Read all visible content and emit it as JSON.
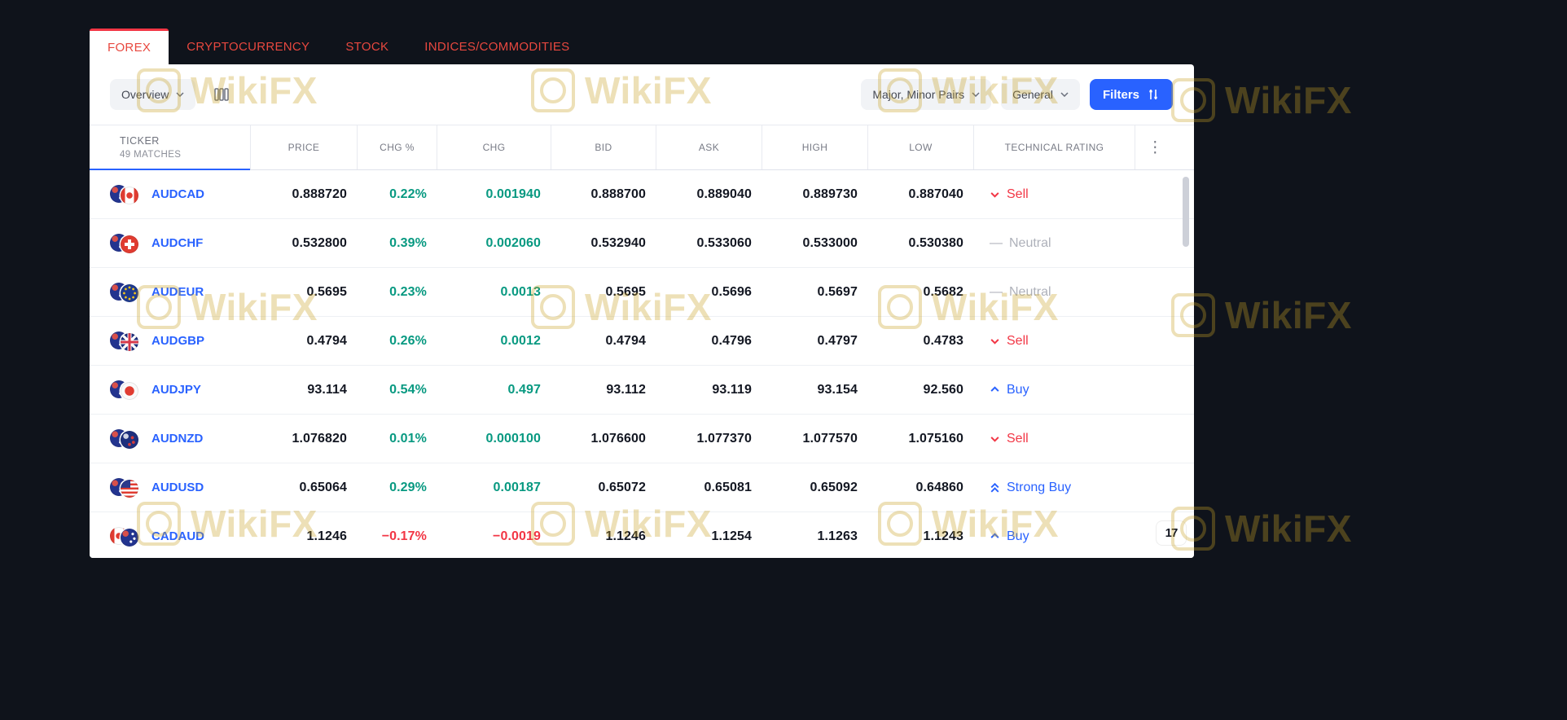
{
  "tabs": {
    "items": [
      {
        "label": "FOREX",
        "active": true
      },
      {
        "label": "CRYPTOCURRENCY",
        "active": false
      },
      {
        "label": "STOCK",
        "active": false
      },
      {
        "label": "INDICES/COMMODITIES",
        "active": false
      }
    ]
  },
  "toolbar": {
    "view_selector": "Overview",
    "pairs_selector": "Major, Minor Pairs",
    "category_selector": "General",
    "filters_button": "Filters"
  },
  "table": {
    "ticker_header": "TICKER",
    "matches_label": "49 MATCHES",
    "columns": [
      "PRICE",
      "CHG %",
      "CHG",
      "BID",
      "ASK",
      "HIGH",
      "LOW",
      "TECHNICAL RATING"
    ],
    "rows": [
      {
        "ticker": "AUDCAD",
        "flags": [
          "aud",
          "cad"
        ],
        "price": "0.888720",
        "chg_pct": "0.22%",
        "chg": "0.001940",
        "bid": "0.888700",
        "ask": "0.889040",
        "high": "0.889730",
        "low": "0.887040",
        "rating": {
          "label": "Sell",
          "type": "sell"
        }
      },
      {
        "ticker": "AUDCHF",
        "flags": [
          "aud",
          "chf"
        ],
        "price": "0.532800",
        "chg_pct": "0.39%",
        "chg": "0.002060",
        "bid": "0.532940",
        "ask": "0.533060",
        "high": "0.533000",
        "low": "0.530380",
        "rating": {
          "label": "Neutral",
          "type": "neutral"
        }
      },
      {
        "ticker": "AUDEUR",
        "flags": [
          "aud",
          "eur"
        ],
        "price": "0.5695",
        "chg_pct": "0.23%",
        "chg": "0.0013",
        "bid": "0.5695",
        "ask": "0.5696",
        "high": "0.5697",
        "low": "0.5682",
        "rating": {
          "label": "Neutral",
          "type": "neutral"
        }
      },
      {
        "ticker": "AUDGBP",
        "flags": [
          "aud",
          "gbp"
        ],
        "price": "0.4794",
        "chg_pct": "0.26%",
        "chg": "0.0012",
        "bid": "0.4794",
        "ask": "0.4796",
        "high": "0.4797",
        "low": "0.4783",
        "rating": {
          "label": "Sell",
          "type": "sell"
        }
      },
      {
        "ticker": "AUDJPY",
        "flags": [
          "aud",
          "jpy"
        ],
        "price": "93.114",
        "chg_pct": "0.54%",
        "chg": "0.497",
        "bid": "93.112",
        "ask": "93.119",
        "high": "93.154",
        "low": "92.560",
        "rating": {
          "label": "Buy",
          "type": "buy"
        }
      },
      {
        "ticker": "AUDNZD",
        "flags": [
          "aud",
          "nzd"
        ],
        "price": "1.076820",
        "chg_pct": "0.01%",
        "chg": "0.000100",
        "bid": "1.076600",
        "ask": "1.077370",
        "high": "1.077570",
        "low": "1.075160",
        "rating": {
          "label": "Sell",
          "type": "sell"
        }
      },
      {
        "ticker": "AUDUSD",
        "flags": [
          "aud",
          "usd"
        ],
        "price": "0.65064",
        "chg_pct": "0.29%",
        "chg": "0.00187",
        "bid": "0.65072",
        "ask": "0.65081",
        "high": "0.65092",
        "low": "0.64860",
        "rating": {
          "label": "Strong Buy",
          "type": "strong-buy"
        }
      },
      {
        "ticker": "CADAUD",
        "flags": [
          "cad",
          "aud"
        ],
        "price": "1.1246",
        "chg_pct": "−0.17%",
        "chg": "−0.0019",
        "bid": "1.1246",
        "ask": "1.1254",
        "high": "1.1263",
        "low": "1.1243",
        "rating": {
          "label": "Buy",
          "type": "buy"
        }
      }
    ]
  },
  "watermark": {
    "text": "WikiFX"
  },
  "tradingview_badge": "17",
  "colors": {
    "accent_blue": "#2962ff",
    "positive": "#089981",
    "negative": "#f23645",
    "tab_red": "#e8483f",
    "neutral_gray": "#aeb1ba"
  }
}
